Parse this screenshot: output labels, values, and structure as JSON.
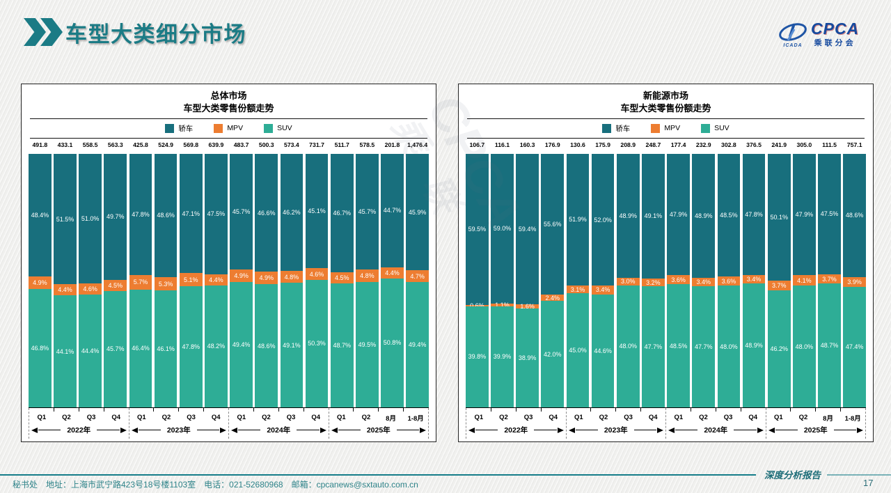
{
  "header": {
    "title": "车型大类细分市场"
  },
  "logo": {
    "cpca": "CPCA",
    "sub": "乘联分会",
    "cada": "ICADA"
  },
  "watermark": {
    "line1": "CPCA",
    "line2": "乘 联"
  },
  "footer": {
    "info": "秘书处　地址：上海市武宁路423号18号楼1103室　电话：021-52680968　邮箱：cpcanews@sxtauto.com.cn",
    "report": "深度分析报告",
    "page": "17"
  },
  "colors": {
    "accent": "#1B7B85",
    "sedan": "#186F7D",
    "mpv": "#ED7D31",
    "suv": "#2EAD96",
    "footer_line": "#157D89"
  },
  "chart_data": [
    {
      "type": "bar",
      "stacked": true,
      "unit": "%",
      "title_line1": "总体市场",
      "title_line2": "车型大类零售份额走势",
      "legend_position": "top",
      "categories": [
        "Q1",
        "Q2",
        "Q3",
        "Q4",
        "Q1",
        "Q2",
        "Q3",
        "Q4",
        "Q1",
        "Q2",
        "Q3",
        "Q4",
        "Q1",
        "Q2",
        "8月",
        "1-8月"
      ],
      "year_groups": [
        {
          "label": "2022年",
          "span": 4
        },
        {
          "label": "2023年",
          "span": 4
        },
        {
          "label": "2024年",
          "span": 4
        },
        {
          "label": "2025年",
          "span": 4
        }
      ],
      "totals": [
        "491.8",
        "433.1",
        "558.5",
        "563.3",
        "425.8",
        "524.9",
        "569.8",
        "639.9",
        "483.7",
        "500.3",
        "573.4",
        "731.7",
        "511.7",
        "578.5",
        "201.8",
        "1,476.4"
      ],
      "series": [
        {
          "name": "轿车",
          "color": "#186F7D",
          "values": [
            48.4,
            51.5,
            51.0,
            49.7,
            47.8,
            48.6,
            47.1,
            47.5,
            45.7,
            46.6,
            46.2,
            45.1,
            46.7,
            45.7,
            44.7,
            45.9
          ]
        },
        {
          "name": "MPV",
          "color": "#ED7D31",
          "values": [
            4.9,
            4.4,
            4.6,
            4.5,
            5.7,
            5.3,
            5.1,
            4.4,
            4.9,
            4.9,
            4.8,
            4.6,
            4.5,
            4.8,
            4.4,
            4.7
          ]
        },
        {
          "name": "SUV",
          "color": "#2EAD96",
          "values": [
            46.8,
            44.1,
            44.4,
            45.7,
            46.4,
            46.1,
            47.8,
            48.2,
            49.4,
            48.6,
            49.1,
            50.3,
            48.7,
            49.5,
            50.8,
            49.4
          ]
        }
      ]
    },
    {
      "type": "bar",
      "stacked": true,
      "unit": "%",
      "title_line1": "新能源市场",
      "title_line2": "车型大类零售份额走势",
      "legend_position": "top",
      "categories": [
        "Q1",
        "Q2",
        "Q3",
        "Q4",
        "Q1",
        "Q2",
        "Q3",
        "Q4",
        "Q1",
        "Q2",
        "Q3",
        "Q4",
        "Q1",
        "Q2",
        "8月",
        "1-8月"
      ],
      "year_groups": [
        {
          "label": "2022年",
          "span": 4
        },
        {
          "label": "2023年",
          "span": 4
        },
        {
          "label": "2024年",
          "span": 4
        },
        {
          "label": "2025年",
          "span": 4
        }
      ],
      "totals": [
        "106.7",
        "116.1",
        "160.3",
        "176.9",
        "130.6",
        "175.9",
        "208.9",
        "248.7",
        "177.4",
        "232.9",
        "302.8",
        "376.5",
        "241.9",
        "305.0",
        "111.5",
        "757.1"
      ],
      "series": [
        {
          "name": "轿车",
          "color": "#186F7D",
          "values": [
            59.5,
            59.0,
            59.4,
            55.6,
            51.9,
            52.0,
            48.9,
            49.1,
            47.9,
            48.9,
            48.5,
            47.8,
            50.1,
            47.9,
            47.5,
            48.6
          ]
        },
        {
          "name": "MPV",
          "color": "#ED7D31",
          "values": [
            0.6,
            1.1,
            1.6,
            2.4,
            3.1,
            3.4,
            3.0,
            3.2,
            3.6,
            3.4,
            3.6,
            3.4,
            3.7,
            4.1,
            3.7,
            3.9
          ]
        },
        {
          "name": "SUV",
          "color": "#2EAD96",
          "values": [
            39.8,
            39.9,
            38.9,
            42.0,
            45.0,
            44.6,
            48.0,
            47.7,
            48.5,
            47.7,
            48.0,
            48.9,
            46.2,
            48.0,
            48.7,
            47.4
          ]
        }
      ]
    }
  ]
}
